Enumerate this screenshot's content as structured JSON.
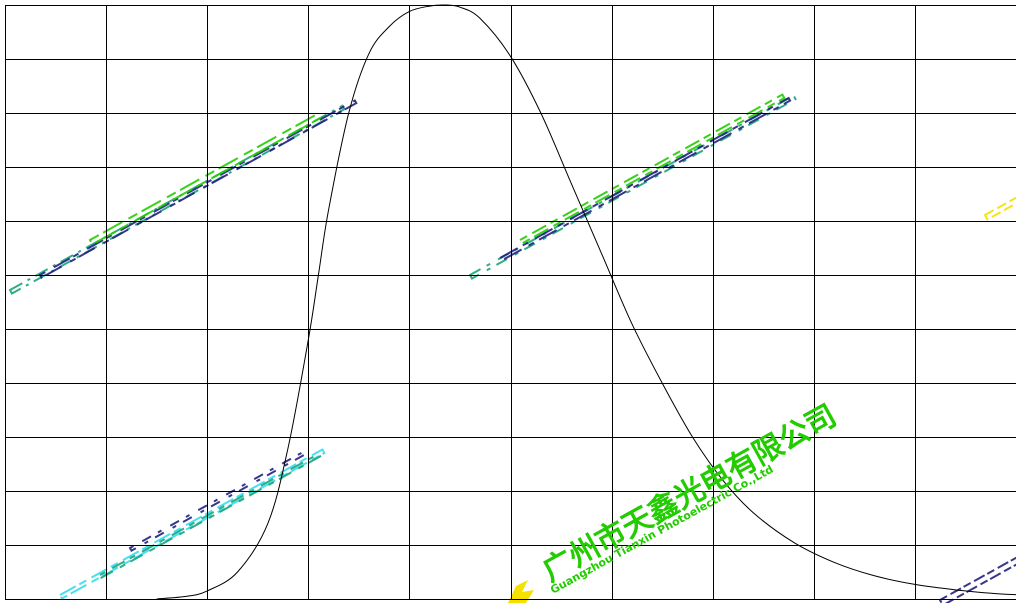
{
  "chart_data": {
    "type": "line",
    "title": "",
    "xlabel": "",
    "ylabel": "",
    "grid": true,
    "grid_columns": 10,
    "grid_rows": 11,
    "xlim": [
      0,
      10
    ],
    "ylim": [
      0,
      11
    ],
    "series": [
      {
        "color": "#000000",
        "x": [
          1.5,
          1.8,
          2.0,
          2.3,
          2.6,
          2.8,
          3.0,
          3.1,
          3.2,
          3.4,
          3.6,
          3.8,
          4.0,
          4.2,
          4.35,
          4.5,
          4.7,
          5.0,
          5.3,
          5.6,
          5.9,
          6.2,
          6.5,
          6.8,
          7.1,
          7.4,
          7.8,
          8.2,
          8.6,
          9.0,
          9.4,
          9.8,
          10.0
        ],
        "y": [
          0.0,
          0.05,
          0.15,
          0.5,
          1.4,
          2.8,
          4.8,
          6.0,
          7.2,
          9.0,
          10.1,
          10.6,
          10.88,
          10.98,
          11.0,
          10.96,
          10.75,
          10.05,
          9.0,
          7.7,
          6.4,
          5.1,
          4.0,
          3.0,
          2.2,
          1.6,
          1.05,
          0.68,
          0.43,
          0.27,
          0.17,
          0.1,
          0.08
        ]
      }
    ]
  },
  "watermark": {
    "company_cn": "广州市天鑫光电有限公司",
    "company_en": "Guangzhou Tianxin Photoelectric Co.,Ltd",
    "colors": {
      "green": "#22cc00",
      "teal": "#1aa37a",
      "cyan": "#33ddee",
      "yellow": "#f5e000",
      "navy": "#202080"
    }
  }
}
